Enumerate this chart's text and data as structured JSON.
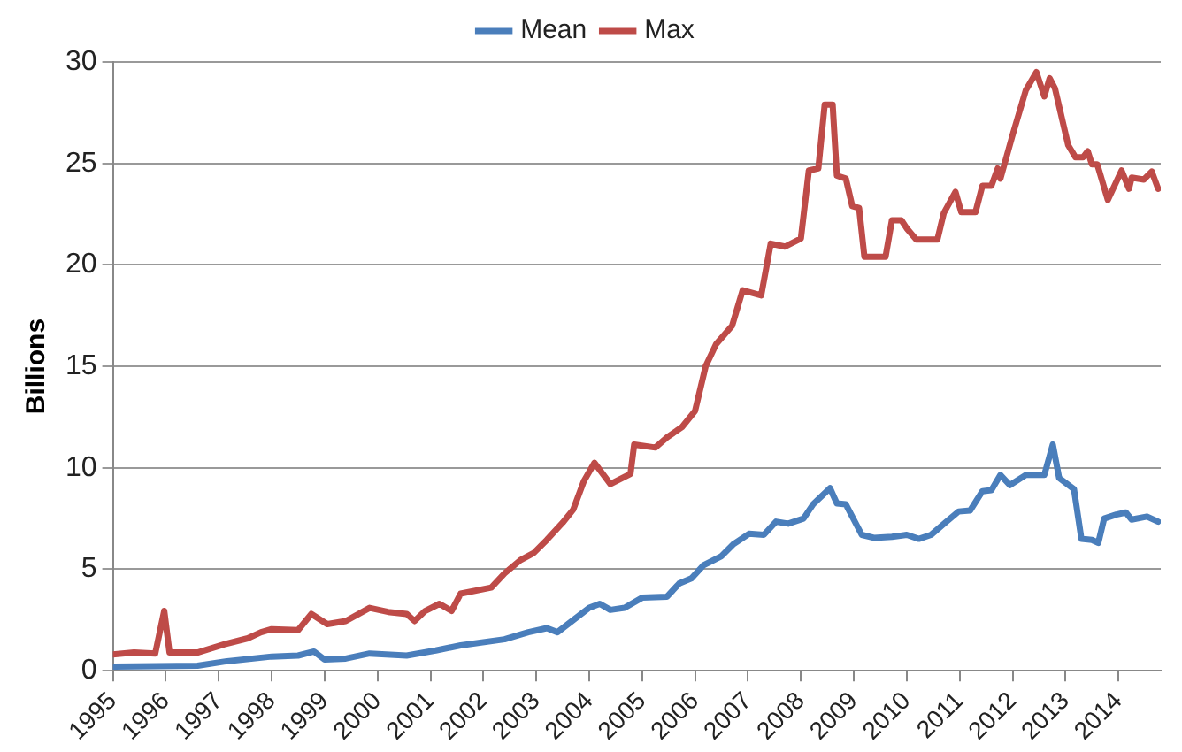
{
  "chart_data": {
    "type": "line",
    "ylabel": "Billions",
    "legend": "top",
    "grid": "y",
    "marker": "none",
    "line_style": "solid",
    "xlim": [
      1995,
      2014.8
    ],
    "xticks": [
      1995,
      1996,
      1997,
      1998,
      1999,
      2000,
      2001,
      2002,
      2003,
      2004,
      2005,
      2006,
      2007,
      2008,
      2009,
      2010,
      2011,
      2012,
      2013,
      2014
    ],
    "ylim": [
      0,
      30
    ],
    "yticks": [
      0,
      5,
      10,
      15,
      20,
      25,
      30
    ],
    "series": [
      {
        "name": "Mean",
        "color": "#4a7ebb",
        "x": [
          1995.03,
          1996.6,
          1997.1,
          1998.0,
          1998.5,
          1998.8,
          1999.0,
          1999.4,
          1999.85,
          2000.55,
          2001.1,
          2001.57,
          2002.4,
          2002.85,
          2003.2,
          2003.4,
          2003.65,
          2004.0,
          2004.2,
          2004.4,
          2004.67,
          2005.0,
          2005.47,
          2005.7,
          2005.93,
          2006.16,
          2006.5,
          2006.73,
          2007.02,
          2007.3,
          2007.53,
          2007.76,
          2008.05,
          2008.23,
          2008.55,
          2008.68,
          2008.85,
          2009.15,
          2009.38,
          2009.72,
          2010.0,
          2010.23,
          2010.46,
          2010.75,
          2010.98,
          2011.2,
          2011.43,
          2011.6,
          2011.77,
          2011.95,
          2012.25,
          2012.6,
          2012.76,
          2012.88,
          2013.16,
          2013.3,
          2013.5,
          2013.62,
          2013.73,
          2013.96,
          2014.14,
          2014.25,
          2014.54,
          2014.75
        ],
        "values": [
          0.2,
          0.25,
          0.45,
          0.7,
          0.75,
          0.95,
          0.55,
          0.6,
          0.85,
          0.75,
          1.0,
          1.25,
          1.55,
          1.9,
          2.1,
          1.9,
          2.4,
          3.1,
          3.3,
          3.0,
          3.1,
          3.6,
          3.65,
          4.3,
          4.55,
          5.2,
          5.65,
          6.25,
          6.75,
          6.7,
          7.35,
          7.25,
          7.5,
          8.2,
          9.0,
          8.25,
          8.2,
          6.7,
          6.55,
          6.6,
          6.7,
          6.5,
          6.7,
          7.35,
          7.85,
          7.9,
          8.85,
          8.9,
          9.65,
          9.15,
          9.65,
          9.65,
          11.15,
          9.5,
          8.95,
          6.5,
          6.45,
          6.3,
          7.5,
          7.7,
          7.8,
          7.45,
          7.6,
          7.35
        ]
      },
      {
        "name": "Max",
        "color": "#be4b48",
        "x": [
          1995.0,
          1995.4,
          1995.8,
          1995.97,
          1996.07,
          1996.6,
          1997.1,
          1997.55,
          1997.8,
          1998.0,
          1998.5,
          1998.75,
          1999.05,
          1999.4,
          1999.85,
          2000.2,
          2000.55,
          2000.7,
          2000.9,
          2001.17,
          2001.4,
          2001.57,
          2002.15,
          2002.4,
          2002.7,
          2002.95,
          2003.2,
          2003.5,
          2003.7,
          2003.9,
          2004.1,
          2004.4,
          2004.78,
          2004.85,
          2005.25,
          2005.47,
          2005.75,
          2006.0,
          2006.2,
          2006.4,
          2006.7,
          2006.9,
          2007.25,
          2007.43,
          2007.7,
          2008.0,
          2008.15,
          2008.33,
          2008.45,
          2008.6,
          2008.68,
          2008.85,
          2008.97,
          2009.1,
          2009.2,
          2009.6,
          2009.72,
          2009.9,
          2010.0,
          2010.18,
          2010.58,
          2010.7,
          2010.92,
          2011.03,
          2011.3,
          2011.43,
          2011.6,
          2011.72,
          2011.77,
          2012.0,
          2012.25,
          2012.45,
          2012.6,
          2012.7,
          2012.8,
          2013.05,
          2013.19,
          2013.33,
          2013.42,
          2013.5,
          2013.6,
          2013.8,
          2014.06,
          2014.2,
          2014.25,
          2014.48,
          2014.63,
          2014.75
        ],
        "values": [
          0.8,
          0.9,
          0.85,
          2.95,
          0.9,
          0.9,
          1.3,
          1.6,
          1.9,
          2.05,
          2.0,
          2.8,
          2.3,
          2.45,
          3.1,
          2.9,
          2.8,
          2.45,
          2.95,
          3.3,
          2.95,
          3.8,
          4.1,
          4.8,
          5.45,
          5.8,
          6.45,
          7.3,
          7.95,
          9.35,
          10.25,
          9.2,
          9.7,
          11.15,
          11.0,
          11.5,
          12.0,
          12.8,
          15.0,
          16.1,
          17.0,
          18.75,
          18.5,
          21.05,
          20.9,
          21.3,
          24.65,
          24.75,
          27.9,
          27.9,
          24.4,
          24.25,
          22.9,
          22.8,
          20.4,
          20.4,
          22.2,
          22.2,
          21.8,
          21.25,
          21.25,
          22.55,
          23.6,
          22.6,
          22.6,
          23.9,
          23.9,
          24.75,
          24.25,
          26.4,
          28.6,
          29.5,
          28.3,
          29.2,
          28.7,
          25.9,
          25.3,
          25.3,
          25.6,
          24.95,
          24.95,
          23.2,
          24.65,
          23.75,
          24.3,
          24.2,
          24.6,
          23.75
        ]
      }
    ]
  }
}
